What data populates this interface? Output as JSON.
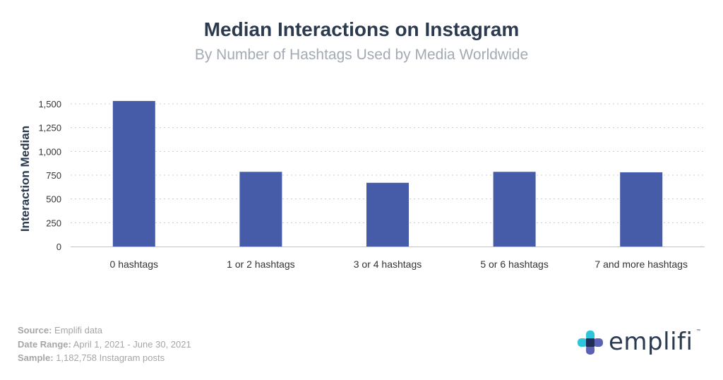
{
  "chart_data": {
    "type": "bar",
    "title": "Median Interactions on Instagram",
    "subtitle": "By Number of Hashtags Used by Media Worldwide",
    "ylabel": "Interaction Median",
    "xlabel": "",
    "categories": [
      "0 hashtags",
      "1 or 2 hashtags",
      "3 or 4 hashtags",
      "5 or 6 hashtags",
      "7 and more hashtags"
    ],
    "values": [
      1530,
      785,
      670,
      785,
      780
    ],
    "ylim": [
      0,
      1500
    ],
    "yticks": [
      0,
      250,
      500,
      750,
      1000,
      1250,
      1500
    ],
    "ytick_labels": [
      "0",
      "250",
      "500",
      "750",
      "1,000",
      "1,250",
      "1,500"
    ],
    "grid": true,
    "bar_color": "#475ca9"
  },
  "footer": {
    "source_label": "Source:",
    "source_value": "Emplifi data",
    "date_label": "Date Range:",
    "date_value": "April 1, 2021 - June 30, 2021",
    "sample_label": "Sample:",
    "sample_value": "1,182,758 Instagram posts"
  },
  "logo": {
    "text": "emplifi",
    "tm": "™"
  },
  "colors": {
    "title": "#2b3a4e",
    "subtitle": "#a3aab4",
    "grid": "#c8ccd2",
    "footer": "#a6a6a6"
  }
}
